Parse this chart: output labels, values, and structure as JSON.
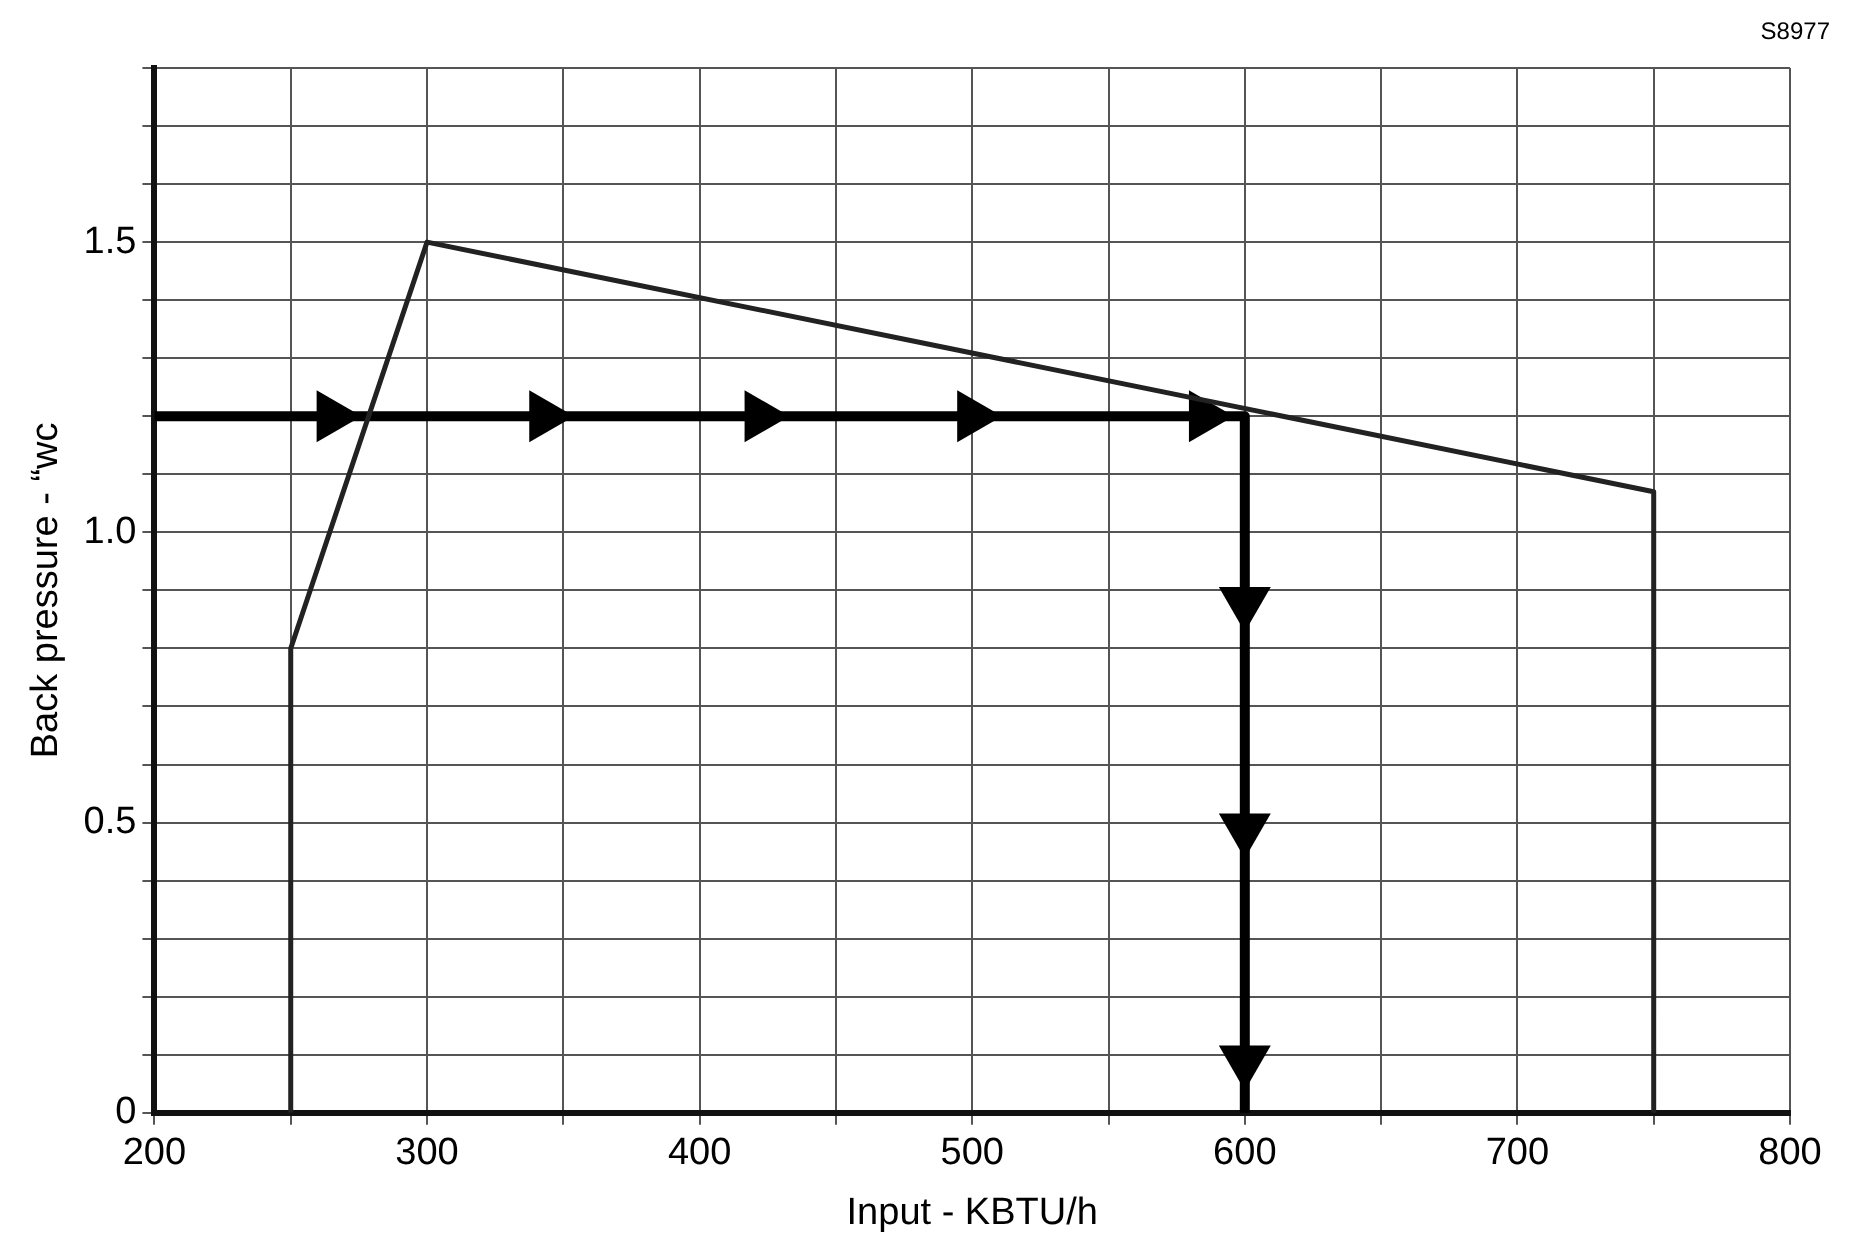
{
  "chart_data": {
    "type": "line",
    "xlabel": "Input - KBTU/h",
    "ylabel": "Back pressure - “wc",
    "annotations": [
      "S8977"
    ],
    "x": [
      250,
      250,
      300,
      750,
      750
    ],
    "series": [
      {
        "color": "#222222",
        "values": [
          0,
          0.8,
          1.5,
          1.07,
          0
        ],
        "marker": "none"
      },
      {
        "color": "#000000",
        "x": [
          200,
          265,
          343,
          422,
          500,
          585,
          600,
          600,
          600,
          600,
          600
        ],
        "values": [
          1.2,
          1.2,
          1.2,
          1.2,
          1.2,
          1.2,
          1.2,
          0.88,
          0.49,
          0.09,
          0
        ],
        "marker": "triangle"
      }
    ],
    "xlim": [
      200,
      800
    ],
    "xticks": [
      200,
      {
        "value": 250,
        "label": null
      },
      300,
      {
        "value": 350,
        "label": null
      },
      400,
      {
        "value": 450,
        "label": null
      },
      500,
      {
        "value": 550,
        "label": null
      },
      600,
      {
        "value": 650,
        "label": null
      },
      700,
      {
        "value": 750,
        "label": null
      },
      800
    ],
    "ylim": [
      0,
      1.8
    ],
    "yticks": [
      0,
      {
        "value": 0.1,
        "label": null
      },
      {
        "value": 0.2,
        "label": null
      },
      {
        "value": 0.3,
        "label": null
      },
      {
        "value": 0.4,
        "label": null
      },
      0.5,
      {
        "value": 0.6,
        "label": null
      },
      {
        "value": 0.7,
        "label": null
      },
      {
        "value": 0.8,
        "label": null
      },
      {
        "value": 0.9,
        "label": null
      },
      {
        "value": 1,
        "label": "1.0"
      },
      {
        "value": 1.1,
        "label": null
      },
      {
        "value": 1.2,
        "label": null
      },
      {
        "value": 1.3,
        "label": null
      },
      {
        "value": 1.4,
        "label": null
      },
      1.5,
      {
        "value": 1.6,
        "label": null
      },
      {
        "value": 1.7,
        "label": null
      },
      {
        "value": 1.8,
        "label": null
      }
    ],
    "grid": true,
    "legend": false
  }
}
